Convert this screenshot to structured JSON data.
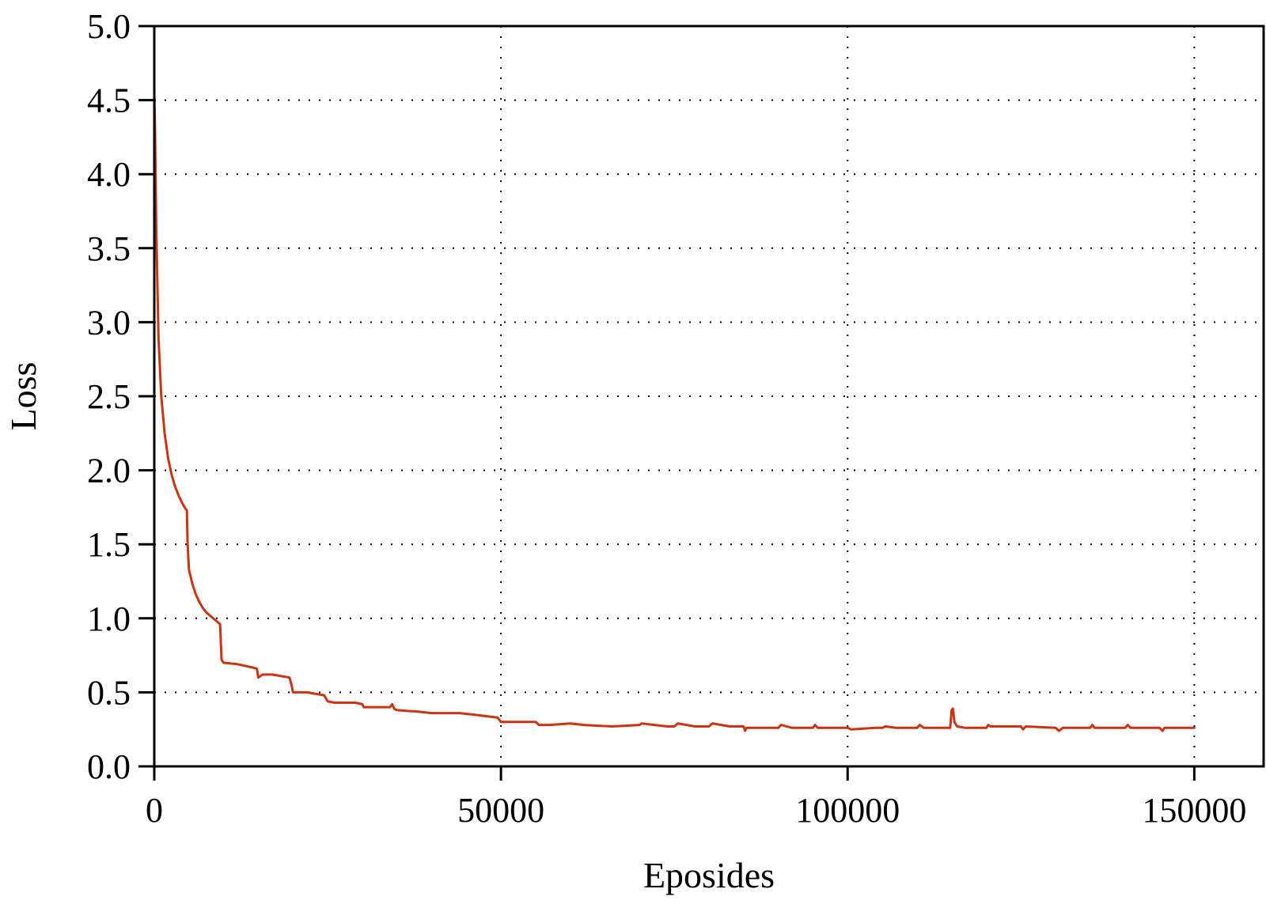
{
  "chart_data": {
    "type": "line",
    "xlabel": "Eposides",
    "ylabel": "Loss",
    "xlim": [
      0,
      160000
    ],
    "ylim": [
      0.0,
      5.0
    ],
    "xticks": [
      0,
      50000,
      100000,
      150000
    ],
    "xtick_labels": [
      "0",
      "50000",
      "100000",
      "150000"
    ],
    "yticks": [
      0.0,
      0.5,
      1.0,
      1.5,
      2.0,
      2.5,
      3.0,
      3.5,
      4.0,
      4.5,
      5.0
    ],
    "ytick_labels": [
      "0.0",
      "0.5",
      "1.0",
      "1.5",
      "2.0",
      "2.5",
      "3.0",
      "3.5",
      "4.0",
      "4.5",
      "5.0"
    ],
    "grid": true,
    "grid_style": "dotted",
    "legend": "none",
    "colors": {
      "series": "#cc3311",
      "axes": "#000000",
      "background": "#ffffff"
    },
    "series": [
      {
        "color": "#cc3311",
        "x": [
          0,
          100,
          300,
          600,
          1000,
          1500,
          2000,
          2500,
          3000,
          3500,
          4000,
          4500,
          4700,
          4800,
          5000,
          5500,
          6000,
          6500,
          7000,
          7500,
          8000,
          9000,
          9500,
          9700,
          10000,
          12000,
          14000,
          14800,
          15000,
          15300,
          15600,
          17000,
          19500,
          19800,
          20000,
          22000,
          24500,
          25000,
          26000,
          29000,
          30000,
          30200,
          33000,
          34000,
          34300,
          34600,
          35000,
          38000,
          40000,
          44000,
          46000,
          49500,
          50000,
          55000,
          55500,
          57000,
          60000,
          62000,
          66000,
          70000,
          70300,
          74000,
          75000,
          75500,
          78000,
          80000,
          80500,
          83000,
          85000,
          85200,
          85400,
          88000,
          90000,
          90400,
          92000,
          95000,
          95300,
          95700,
          99000,
          100000,
          100500,
          104000,
          105000,
          105400,
          107000,
          110000,
          110400,
          111000,
          114800,
          115000,
          115200,
          115400,
          115800,
          117000,
          120000,
          120300,
          120600,
          125000,
          125300,
          125700,
          130000,
          130500,
          131000,
          135000,
          135300,
          135600,
          140000,
          140400,
          140800,
          145000,
          145400,
          145700,
          147000,
          150000
        ],
        "y": [
          4.55,
          4.3,
          3.6,
          2.9,
          2.5,
          2.25,
          2.08,
          1.97,
          1.89,
          1.83,
          1.78,
          1.74,
          1.73,
          1.5,
          1.33,
          1.23,
          1.16,
          1.11,
          1.07,
          1.04,
          1.02,
          0.98,
          0.96,
          0.72,
          0.7,
          0.69,
          0.67,
          0.66,
          0.6,
          0.61,
          0.62,
          0.62,
          0.6,
          0.55,
          0.5,
          0.5,
          0.48,
          0.44,
          0.43,
          0.43,
          0.42,
          0.4,
          0.4,
          0.4,
          0.42,
          0.39,
          0.38,
          0.37,
          0.36,
          0.36,
          0.35,
          0.33,
          0.3,
          0.3,
          0.28,
          0.28,
          0.29,
          0.28,
          0.27,
          0.28,
          0.29,
          0.27,
          0.27,
          0.29,
          0.27,
          0.27,
          0.29,
          0.27,
          0.27,
          0.24,
          0.26,
          0.26,
          0.26,
          0.28,
          0.26,
          0.26,
          0.28,
          0.26,
          0.26,
          0.26,
          0.25,
          0.26,
          0.26,
          0.27,
          0.26,
          0.26,
          0.28,
          0.26,
          0.26,
          0.38,
          0.39,
          0.3,
          0.27,
          0.26,
          0.26,
          0.28,
          0.27,
          0.27,
          0.25,
          0.27,
          0.26,
          0.24,
          0.26,
          0.26,
          0.28,
          0.26,
          0.26,
          0.28,
          0.26,
          0.26,
          0.24,
          0.26,
          0.26,
          0.26
        ]
      }
    ]
  }
}
